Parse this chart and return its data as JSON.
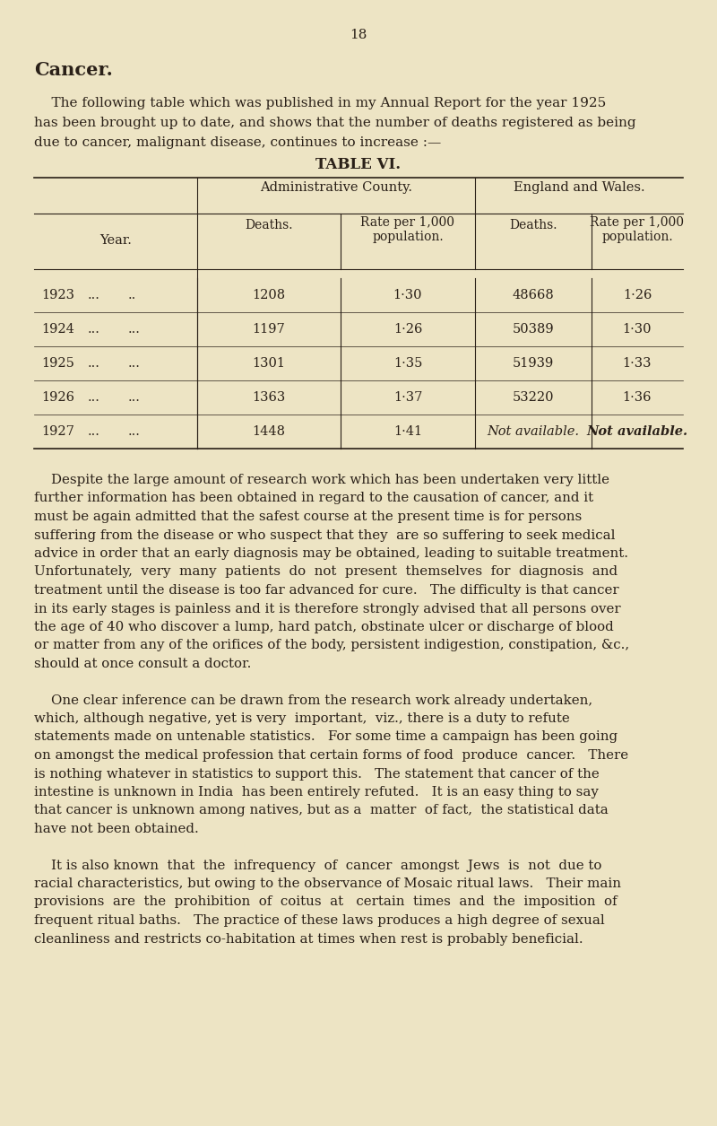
{
  "page_number": "18",
  "background_color": "#ede4c4",
  "text_color": "#2a2018",
  "title": "Cancer.",
  "intro_line1": "    The following table which was published in my Annual Report for the year 1925",
  "intro_line2": "has been brought up to date, and shows that the number of deaths registered as being",
  "intro_line3": "due to cancer, malignant disease, continues to increase :—",
  "table_title": "TABLE VI.",
  "table_rows": [
    [
      "1923",
      "...",
      "..",
      "1208",
      "1·30",
      "48668",
      "1·26"
    ],
    [
      "1924",
      "...",
      "...",
      "1197",
      "1·26",
      "50389",
      "1·30"
    ],
    [
      "1925",
      "...",
      "...",
      "1301",
      "1·35",
      "51939",
      "1·33"
    ],
    [
      "1926",
      "...",
      "...",
      "1363",
      "1·37",
      "53220",
      "1·36"
    ],
    [
      "1927",
      "...",
      "...",
      "1448",
      "1·41",
      "Not available.",
      "Not available."
    ]
  ],
  "para1_lines": [
    "    Despite the large amount of research work which has been undertaken very little",
    "further information has been obtained in regard to the causation of cancer, and it",
    "must be again admitted that the safest course at the present time is for persons",
    "suffering from the disease or who suspect that they  are so suffering to seek medical",
    "advice in order that an early diagnosis may be obtained, leading to suitable treatment.",
    "Unfortunately,  very  many  patients  do  not  present  themselves  for  diagnosis  and",
    "treatment until the disease is too far advanced for cure.   The difficulty is that cancer",
    "in its early stages is painless and it is therefore strongly advised that all persons over",
    "the age of 40 who discover a lump, hard patch, obstinate ulcer or discharge of blood",
    "or matter from any of the orifices of the body, persistent indigestion, constipation, &c.,",
    "should at once consult a doctor."
  ],
  "para2_lines": [
    "    One clear inference can be drawn from the research work already undertaken,",
    "which, although negative, yet is very  important,  viz., there is a duty to refute",
    "statements made on untenable statistics.   For some time a campaign has been going",
    "on amongst the medical profession that certain forms of food  produce  cancer.   There",
    "is nothing whatever in statistics to support this.   The statement that cancer of the",
    "intestine is unknown in India  has been entirely refuted.   It is an easy thing to say",
    "that cancer is unknown among natives, but as a  matter  of fact,  the statistical data",
    "have not been obtained."
  ],
  "para3_lines": [
    "    It is also known  that  the  infrequency  of  cancer  amongst  Jews  is  not  due to",
    "racial characteristics, but owing to the observance of Mosaic ritual laws.   Their main",
    "provisions  are  the  prohibition  of  coitus  at   certain  times  and  the  imposition  of",
    "frequent ritual baths.   The practice of these laws produces a high degree of sexual",
    "cleanliness and restricts co-habitation at times when rest is probably beneficial."
  ]
}
